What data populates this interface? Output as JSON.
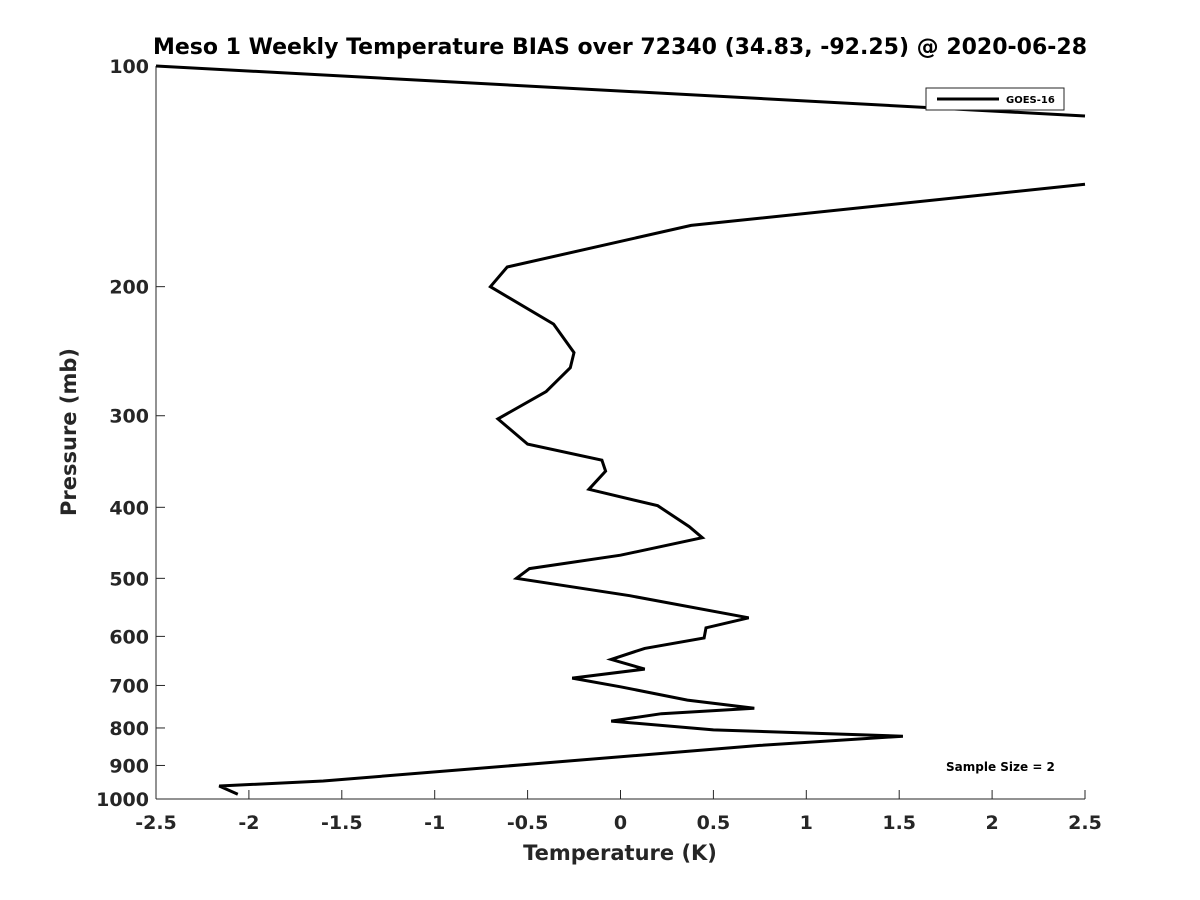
{
  "chart_data": {
    "type": "line",
    "title": "Meso 1 Weekly Temperature BIAS over 72340 (34.83, -92.25) @ 2020-06-28",
    "xlabel": "Temperature (K)",
    "ylabel": "Pressure (mb)",
    "xlim": [
      -2.5,
      2.5
    ],
    "ylim": [
      100,
      1000
    ],
    "yscale": "log",
    "yreversed": true,
    "grid": false,
    "x_ticks": [
      -2.5,
      -2,
      -1.5,
      -1,
      -0.5,
      0,
      0.5,
      1,
      1.5,
      2,
      2.5
    ],
    "x_tick_labels": [
      "-2.5",
      "-2",
      "-1.5",
      "-1",
      "-0.5",
      "0",
      "0.5",
      "1",
      "1.5",
      "2",
      "2.5"
    ],
    "y_ticks": [
      100,
      200,
      300,
      400,
      500,
      600,
      700,
      800,
      900,
      1000
    ],
    "y_tick_labels": [
      "100",
      "200",
      "300",
      "400",
      "500",
      "600",
      "700",
      "800",
      "900",
      "1000"
    ],
    "legend": {
      "position": "top-right",
      "entries": [
        "GOES-16"
      ]
    },
    "annotation": "Sample Size = 2",
    "series": [
      {
        "name": "GOES-16",
        "color": "#000000",
        "segments": [
          {
            "x": [
              -2.5,
              2.5
            ],
            "y": [
              100,
              117
            ]
          },
          {
            "x": [
              2.5,
              0.38,
              -0.61,
              -0.7,
              -0.36,
              -0.25,
              -0.27,
              -0.4,
              -0.66,
              -0.5,
              -0.1,
              -0.08,
              -0.17,
              0.2,
              0.37,
              0.44,
              0.0,
              -0.49,
              -0.56,
              0.05,
              0.69,
              0.46,
              0.45,
              0.13,
              -0.05,
              0.13,
              -0.26,
              0.0,
              0.36,
              0.72,
              0.22,
              -0.05,
              0.5,
              1.52,
              0.75,
              -1.6,
              -2.16,
              -2.06
            ],
            "y": [
              145,
              165,
              188,
              200,
              225,
              246,
              258,
              278,
              303,
              328,
              345,
              357,
              378,
              398,
              425,
              440,
              465,
              485,
              500,
              528,
              566,
              584,
              603,
              623,
              645,
              665,
              684,
              703,
              733,
              752,
              765,
              783,
              805,
              821,
              845,
              945,
              960,
              985
            ]
          }
        ]
      }
    ]
  }
}
